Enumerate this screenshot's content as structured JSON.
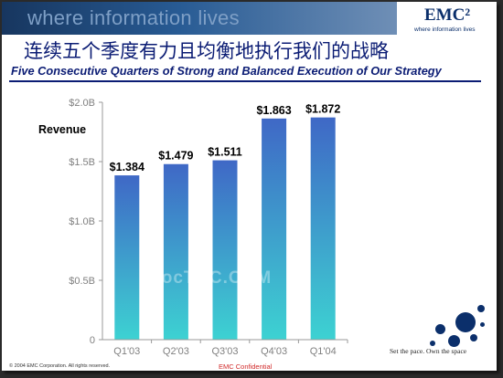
{
  "header": {
    "tagline": "where information lives",
    "logo": "EMC²",
    "logo_sub": "where information lives"
  },
  "slide": {
    "title_cn": "连续五个季度有力且均衡地执行我们的战略",
    "subtitle": "Five Consecutive Quarters of Strong and Balanced Execution of Our Strategy",
    "watermark": "DocTOC.COM"
  },
  "footer": {
    "copyright": "© 2004 EMC Corporation. All rights reserved.",
    "confidential": "EMC Confidential",
    "pace": "Set the pace. Own the space"
  },
  "colors": {
    "bar_top": "#3f68c6",
    "bar_bottom": "#3dd2d2",
    "title": "#0b1c74"
  },
  "chart_data": {
    "type": "bar",
    "title": "",
    "ylabel": "Revenue",
    "xlabel": "",
    "categories": [
      "Q1'03",
      "Q2'03",
      "Q3'03",
      "Q4'03",
      "Q1'04"
    ],
    "values": [
      1.384,
      1.479,
      1.511,
      1.863,
      1.872
    ],
    "data_labels": [
      "$1.384",
      "$1.479",
      "$1.511",
      "$1.863",
      "$1.872"
    ],
    "yticks": [
      0,
      0.5,
      1.0,
      1.5,
      2.0
    ],
    "ytick_labels": [
      "0",
      "$0.5B",
      "$1.0B",
      "$1.5B",
      "$2.0B"
    ],
    "ylim": [
      0,
      2.0
    ],
    "grid": false,
    "legend": "none"
  }
}
